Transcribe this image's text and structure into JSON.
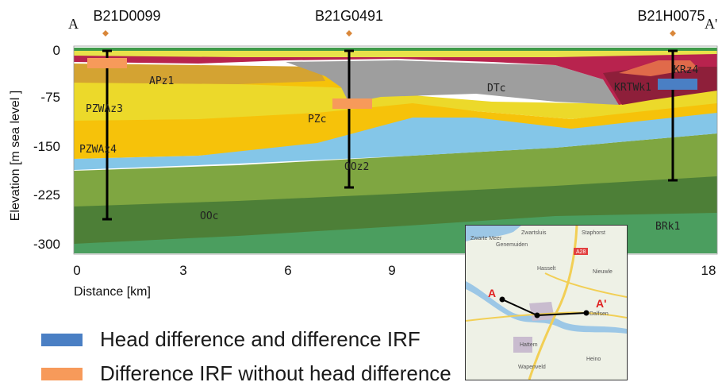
{
  "section": {
    "start_label": "A",
    "end_label": "A'",
    "wells": [
      {
        "name": "B21D0099",
        "km": 0.9
      },
      {
        "name": "B21G0491",
        "km": 7.8
      },
      {
        "name": "B21H0075",
        "km": 16.5
      }
    ],
    "x_axis": {
      "label": "Distance [km]",
      "ticks": [
        "0",
        "3",
        "6",
        "9",
        "18"
      ]
    },
    "y_axis": {
      "label": "Elevation [m sea level ]",
      "ticks": [
        "0",
        "-75",
        "-150",
        "-225",
        "-300"
      ]
    },
    "units": [
      "APz1",
      "PZWAz3",
      "PZWAz4",
      "PZc",
      "DTc",
      "KRz4",
      "KRTWk1",
      "OOz2",
      "OOc",
      "BRk1"
    ],
    "colors": {
      "head_and_irf": "#4a7fc4",
      "irf_only": "#f79a5a",
      "APz1": "#d4a332",
      "PZ": "#f6c20a",
      "PZc": "#ecd92a",
      "DTc": "#9e9e9e",
      "KR": "#b8234e",
      "KRTWk1": "#8e1f3a",
      "clay_blue": "#84c6e8",
      "OOz2": "#7fa641",
      "OOc": "#4d7f37",
      "BRk1": "#4b9e5f"
    }
  },
  "legend": [
    {
      "label": "Head difference and difference IRF",
      "color": "#4a7fc4"
    },
    {
      "label": "Difference IRF without head difference",
      "color": "#f79a5a"
    }
  ],
  "map": {
    "places": [
      "Zwarte Meer",
      "Zwartsluis",
      "Staphorst",
      "Genemuiden",
      "A28",
      "Hasselt",
      "Nieuwle",
      "Hattem",
      "Heino",
      "Wapenveld",
      "Dalfsen"
    ],
    "point_a": "A",
    "point_a_prime": "A'"
  }
}
